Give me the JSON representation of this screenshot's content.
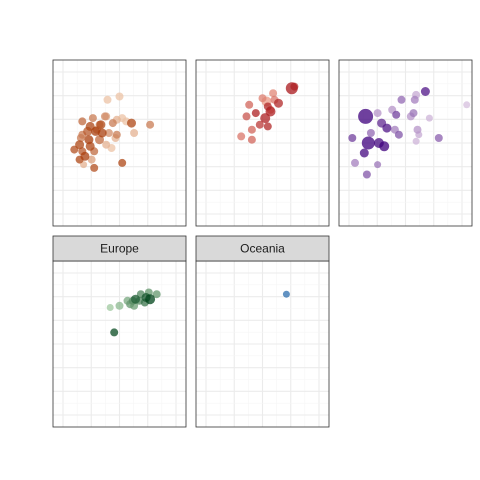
{
  "chart_data": {
    "type": "scatter",
    "facet_layout": "wrap",
    "facet_ncol": 3,
    "grid": true,
    "theme": "light",
    "axis_ticks_shown": false,
    "xlim": [
      0,
      100
    ],
    "ylim": [
      0,
      100
    ],
    "panels": [
      {
        "strip": "",
        "palette": "orange",
        "points": [
          {
            "x": 30,
            "y": 65,
            "size": 5,
            "shade": 0.6
          },
          {
            "x": 39,
            "y": 66,
            "size": 5,
            "shade": 0.5
          },
          {
            "x": 48,
            "y": 64,
            "size": 5,
            "shade": 0.3
          },
          {
            "x": 55,
            "y": 63,
            "size": 5,
            "shade": 0.2
          },
          {
            "x": 59,
            "y": 62,
            "size": 6,
            "shade": 0.9
          },
          {
            "x": 45,
            "y": 62,
            "size": 5,
            "shade": 0.6
          },
          {
            "x": 36,
            "y": 61,
            "size": 6,
            "shade": 0.9
          },
          {
            "x": 22,
            "y": 63,
            "size": 5,
            "shade": 0.7
          },
          {
            "x": 40,
            "y": 66,
            "size": 5,
            "shade": 0.4
          },
          {
            "x": 28,
            "y": 60,
            "size": 6,
            "shade": 0.9
          },
          {
            "x": 26,
            "y": 57,
            "size": 6,
            "shade": 0.8
          },
          {
            "x": 32,
            "y": 57,
            "size": 6,
            "shade": 0.95
          },
          {
            "x": 37,
            "y": 56,
            "size": 6,
            "shade": 0.95
          },
          {
            "x": 42,
            "y": 56,
            "size": 5,
            "shade": 0.5
          },
          {
            "x": 48,
            "y": 55,
            "size": 5,
            "shade": 0.6
          },
          {
            "x": 61,
            "y": 56,
            "size": 5,
            "shade": 0.3
          },
          {
            "x": 73,
            "y": 61,
            "size": 5,
            "shade": 0.6
          },
          {
            "x": 22,
            "y": 55,
            "size": 5,
            "shade": 0.6
          },
          {
            "x": 27,
            "y": 52,
            "size": 6,
            "shade": 0.95
          },
          {
            "x": 35,
            "y": 52,
            "size": 6,
            "shade": 0.7
          },
          {
            "x": 40,
            "y": 49,
            "size": 5,
            "shade": 0.3
          },
          {
            "x": 44,
            "y": 47,
            "size": 5,
            "shade": 0.2
          },
          {
            "x": 20,
            "y": 49,
            "size": 6,
            "shade": 0.9
          },
          {
            "x": 28,
            "y": 48,
            "size": 6,
            "shade": 0.9
          },
          {
            "x": 31,
            "y": 45,
            "size": 5,
            "shade": 0.7
          },
          {
            "x": 22,
            "y": 45,
            "size": 5,
            "shade": 0.8
          },
          {
            "x": 16,
            "y": 46,
            "size": 5,
            "shade": 0.85
          },
          {
            "x": 24,
            "y": 42,
            "size": 6,
            "shade": 0.95
          },
          {
            "x": 20,
            "y": 40,
            "size": 5,
            "shade": 0.9
          },
          {
            "x": 29,
            "y": 40,
            "size": 5,
            "shade": 0.4
          },
          {
            "x": 23,
            "y": 37,
            "size": 4,
            "shade": 0.3
          },
          {
            "x": 31,
            "y": 35,
            "size": 5,
            "shade": 0.85
          },
          {
            "x": 52,
            "y": 65,
            "size": 5,
            "shade": 0.2
          },
          {
            "x": 41,
            "y": 76,
            "size": 5,
            "shade": 0.2
          },
          {
            "x": 50,
            "y": 78,
            "size": 5,
            "shade": 0.2
          },
          {
            "x": 21,
            "y": 53,
            "size": 5,
            "shade": 0.6
          },
          {
            "x": 52,
            "y": 38,
            "size": 5,
            "shade": 0.9
          },
          {
            "x": 47,
            "y": 53,
            "size": 5,
            "shade": 0.3
          },
          {
            "x": 35,
            "y": 61,
            "size": 5,
            "shade": 0.5
          },
          {
            "x": 33,
            "y": 58,
            "size": 5,
            "shade": 0.55
          }
        ]
      },
      {
        "strip": "",
        "palette": "red",
        "points": [
          {
            "x": 72,
            "y": 83,
            "size": 9,
            "shade": 0.95
          },
          {
            "x": 74,
            "y": 84,
            "size": 5,
            "shade": 0.7
          },
          {
            "x": 58,
            "y": 80,
            "size": 5,
            "shade": 0.3
          },
          {
            "x": 50,
            "y": 77,
            "size": 5,
            "shade": 0.35
          },
          {
            "x": 53,
            "y": 75,
            "size": 7,
            "shade": 0.2
          },
          {
            "x": 59,
            "y": 76,
            "size": 5,
            "shade": 0.4
          },
          {
            "x": 62,
            "y": 74,
            "size": 6,
            "shade": 0.85
          },
          {
            "x": 54,
            "y": 72,
            "size": 5,
            "shade": 0.85
          },
          {
            "x": 40,
            "y": 73,
            "size": 5,
            "shade": 0.5
          },
          {
            "x": 56,
            "y": 69,
            "size": 7,
            "shade": 0.9
          },
          {
            "x": 45,
            "y": 68,
            "size": 5,
            "shade": 0.9
          },
          {
            "x": 52,
            "y": 65,
            "size": 7,
            "shade": 0.9
          },
          {
            "x": 38,
            "y": 66,
            "size": 5,
            "shade": 0.6
          },
          {
            "x": 48,
            "y": 61,
            "size": 5,
            "shade": 0.75
          },
          {
            "x": 54,
            "y": 60,
            "size": 5,
            "shade": 0.85
          },
          {
            "x": 42,
            "y": 58,
            "size": 5,
            "shade": 0.5
          },
          {
            "x": 34,
            "y": 54,
            "size": 5,
            "shade": 0.4
          },
          {
            "x": 42,
            "y": 52,
            "size": 5,
            "shade": 0.5
          },
          {
            "x": 56,
            "y": 70,
            "size": 5,
            "shade": 0.3
          }
        ]
      },
      {
        "strip": "",
        "palette": "purple",
        "points": [
          {
            "x": 65,
            "y": 81,
            "size": 6,
            "shade": 0.9
          },
          {
            "x": 58,
            "y": 79,
            "size": 5,
            "shade": 0.2
          },
          {
            "x": 47,
            "y": 76,
            "size": 5,
            "shade": 0.5
          },
          {
            "x": 57,
            "y": 76,
            "size": 5,
            "shade": 0.4
          },
          {
            "x": 96,
            "y": 73,
            "size": 4,
            "shade": 0.1
          },
          {
            "x": 20,
            "y": 66,
            "size": 12,
            "shade": 1.0
          },
          {
            "x": 29,
            "y": 68,
            "size": 5,
            "shade": 0.3
          },
          {
            "x": 56,
            "y": 68,
            "size": 5,
            "shade": 0.45
          },
          {
            "x": 43,
            "y": 67,
            "size": 5,
            "shade": 0.7
          },
          {
            "x": 54,
            "y": 66,
            "size": 5,
            "shade": 0.3
          },
          {
            "x": 68,
            "y": 65,
            "size": 4,
            "shade": 0.15
          },
          {
            "x": 32,
            "y": 62,
            "size": 6,
            "shade": 0.8
          },
          {
            "x": 36,
            "y": 59,
            "size": 6,
            "shade": 0.9
          },
          {
            "x": 42,
            "y": 58,
            "size": 5,
            "shade": 0.4
          },
          {
            "x": 59,
            "y": 58,
            "size": 5,
            "shade": 0.3
          },
          {
            "x": 24,
            "y": 56,
            "size": 5,
            "shade": 0.5
          },
          {
            "x": 60,
            "y": 55,
            "size": 4,
            "shade": 0.2
          },
          {
            "x": 45,
            "y": 55,
            "size": 5,
            "shade": 0.6
          },
          {
            "x": 75,
            "y": 53,
            "size": 5,
            "shade": 0.55
          },
          {
            "x": 10,
            "y": 53,
            "size": 5,
            "shade": 0.7
          },
          {
            "x": 22,
            "y": 50,
            "size": 10,
            "shade": 1.0
          },
          {
            "x": 30,
            "y": 50,
            "size": 7,
            "shade": 0.95
          },
          {
            "x": 58,
            "y": 51,
            "size": 4,
            "shade": 0.15
          },
          {
            "x": 34,
            "y": 48,
            "size": 7,
            "shade": 1.0
          },
          {
            "x": 19,
            "y": 44,
            "size": 6,
            "shade": 0.95
          },
          {
            "x": 12,
            "y": 38,
            "size": 5,
            "shade": 0.4
          },
          {
            "x": 29,
            "y": 37,
            "size": 4,
            "shade": 0.45
          },
          {
            "x": 21,
            "y": 31,
            "size": 5,
            "shade": 0.6
          },
          {
            "x": 40,
            "y": 70,
            "size": 5,
            "shade": 0.3
          }
        ]
      },
      {
        "strip": "Europe",
        "palette": "green",
        "points": [
          {
            "x": 72,
            "y": 81,
            "size": 5,
            "shade": 0.5
          },
          {
            "x": 78,
            "y": 80,
            "size": 5,
            "shade": 0.5
          },
          {
            "x": 66,
            "y": 80,
            "size": 5,
            "shade": 0.6
          },
          {
            "x": 70,
            "y": 78,
            "size": 6,
            "shade": 0.9
          },
          {
            "x": 73,
            "y": 77,
            "size": 7,
            "shade": 1.0
          },
          {
            "x": 62,
            "y": 77,
            "size": 6,
            "shade": 0.85
          },
          {
            "x": 60,
            "y": 76,
            "size": 5,
            "shade": 0.55
          },
          {
            "x": 65,
            "y": 76,
            "size": 5,
            "shade": 0.6
          },
          {
            "x": 56,
            "y": 76,
            "size": 5,
            "shade": 0.4
          },
          {
            "x": 58,
            "y": 74,
            "size": 5,
            "shade": 0.5
          },
          {
            "x": 69,
            "y": 75,
            "size": 5,
            "shade": 0.7
          },
          {
            "x": 61,
            "y": 73,
            "size": 5,
            "shade": 0.45
          },
          {
            "x": 50,
            "y": 73,
            "size": 5,
            "shade": 0.3
          },
          {
            "x": 43,
            "y": 72,
            "size": 4,
            "shade": 0.2
          },
          {
            "x": 46,
            "y": 57,
            "size": 5,
            "shade": 0.95
          }
        ]
      },
      {
        "strip": "Oceania",
        "palette": "blue",
        "points": [
          {
            "x": 68,
            "y": 80,
            "size": 4,
            "shade": 0.8
          }
        ]
      }
    ]
  },
  "colors": {
    "panel_border": "#333333",
    "grid_major": "#ebebeb",
    "grid_minor": "#f5f5f5",
    "strip_fill": "#d9d9d9",
    "palettes": {
      "orange": [
        "#fee6ce",
        "#a63603"
      ],
      "red": [
        "#fcbba1",
        "#a50f15"
      ],
      "purple": [
        "#e7d4e8",
        "#3f007d"
      ],
      "green": [
        "#c7e9c0",
        "#00441b"
      ],
      "blue": [
        "#c6dbef",
        "#08519c"
      ]
    }
  }
}
